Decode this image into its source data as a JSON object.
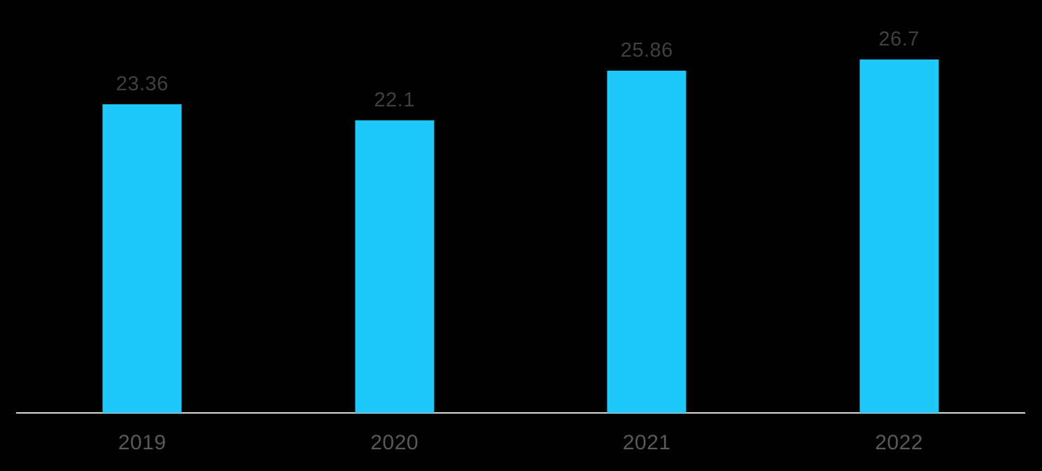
{
  "chart_data": {
    "type": "bar",
    "title": "",
    "xlabel": "",
    "ylabel": "",
    "categories": [
      "2019",
      "2020",
      "2021",
      "2022"
    ],
    "values": [
      23.36,
      22.1,
      25.86,
      26.7
    ],
    "value_labels": [
      "23.36",
      "22.1",
      "25.86",
      "26.7"
    ],
    "ylim": [
      0,
      30
    ],
    "grid": false,
    "legend": false,
    "colors": {
      "bar": "#1EC9FA",
      "value_label": "#404040",
      "axis_label": "#595959",
      "axis_line": "#D9D9D9",
      "background": "#000000"
    }
  }
}
